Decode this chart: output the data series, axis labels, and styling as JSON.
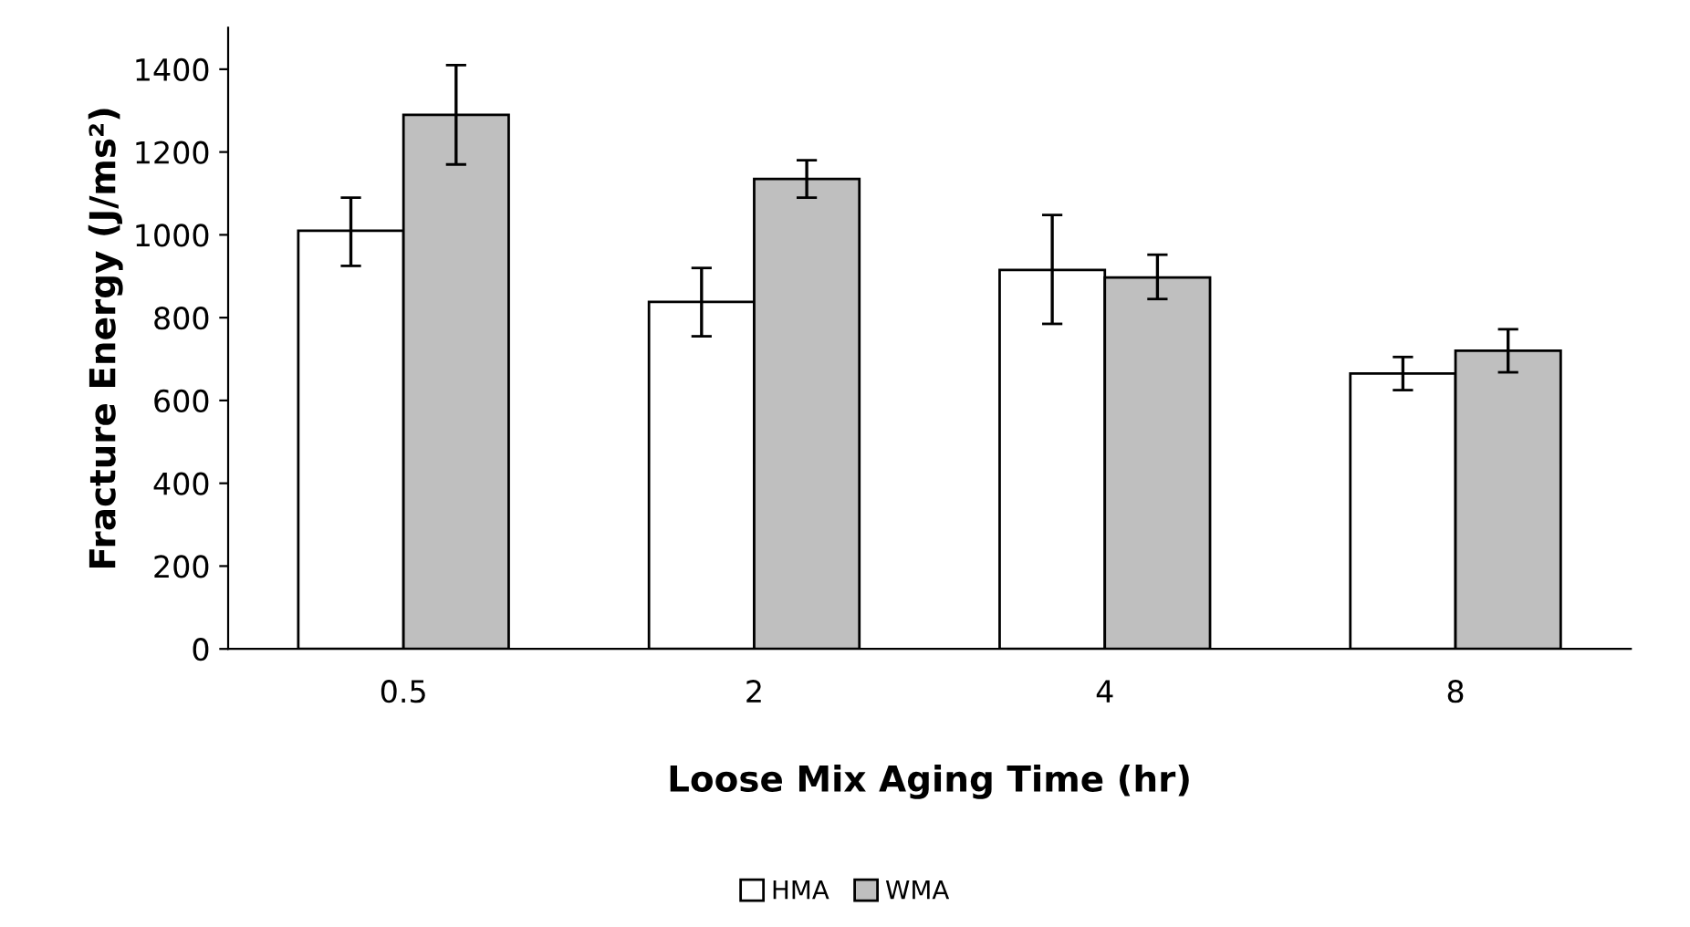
{
  "chart_data": {
    "type": "bar",
    "xlabel": "Loose Mix Aging Time (hr)",
    "ylabel": "Fracture Energy (J/ms²)",
    "categories": [
      "0.5",
      "2",
      "4",
      "8"
    ],
    "series": [
      {
        "name": "HMA",
        "color": "#ffffff",
        "values": [
          1010,
          838,
          915,
          665
        ],
        "errors": [
          [
            925,
            1090
          ],
          [
            755,
            920
          ],
          [
            785,
            1048
          ],
          [
            625,
            705
          ]
        ]
      },
      {
        "name": "WMA",
        "color": "#bfbfbf",
        "values": [
          1290,
          1135,
          897,
          720
        ],
        "errors": [
          [
            1170,
            1410
          ],
          [
            1090,
            1180
          ],
          [
            845,
            952
          ],
          [
            668,
            772
          ]
        ]
      }
    ],
    "ylim": [
      0,
      1500
    ],
    "yticks": [
      0,
      200,
      400,
      600,
      800,
      1000,
      1200,
      1400
    ],
    "grid": false,
    "legend": "bottom"
  }
}
